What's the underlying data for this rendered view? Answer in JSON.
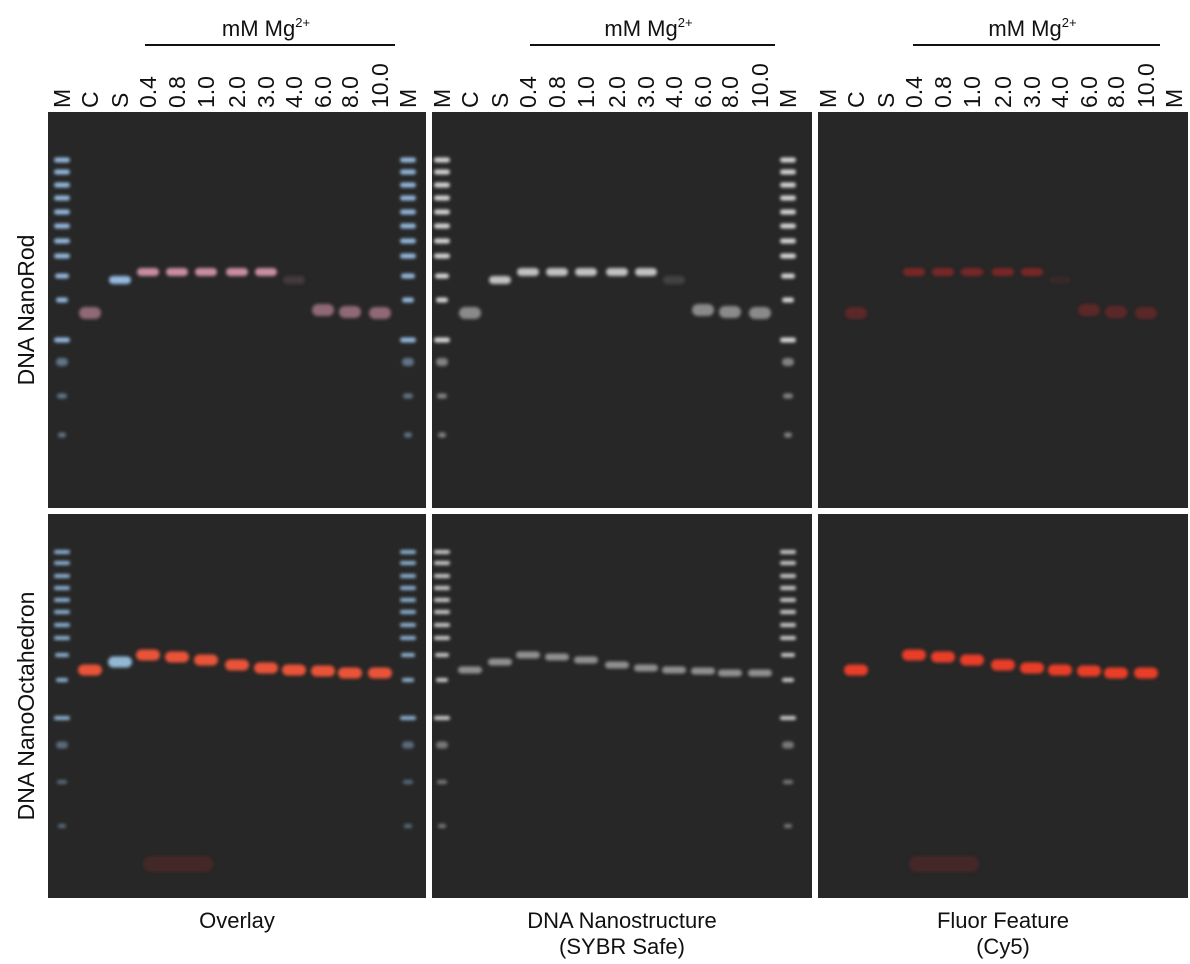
{
  "columns": [
    {
      "mg_label": "mM Mg",
      "mg_superscript": "2+",
      "lanes": [
        "M",
        "C",
        "S",
        "0.4",
        "0.8",
        "1.0",
        "2.0",
        "3.0",
        "4.0",
        "6.0",
        "8.0",
        "10.0",
        "M"
      ],
      "caption": [
        "Overlay"
      ]
    },
    {
      "mg_label": "mM Mg",
      "mg_superscript": "2+",
      "lanes": [
        "M",
        "C",
        "S",
        "0.4",
        "0.8",
        "1.0",
        "2.0",
        "3.0",
        "4.0",
        "6.0",
        "8.0",
        "10.0",
        "M"
      ],
      "caption": [
        "DNA Nanostructure",
        "(SYBR Safe)"
      ]
    },
    {
      "mg_label": "mM Mg",
      "mg_superscript": "2+",
      "lanes": [
        "M",
        "C",
        "S",
        "0.4",
        "0.8",
        "1.0",
        "2.0",
        "3.0",
        "4.0",
        "6.0",
        "8.0",
        "10.0",
        "M"
      ],
      "caption": [
        "Fluor Feature",
        "(Cy5)"
      ]
    }
  ],
  "rows": [
    "DNA NanoRod",
    "DNA NanoOctahedron"
  ]
}
